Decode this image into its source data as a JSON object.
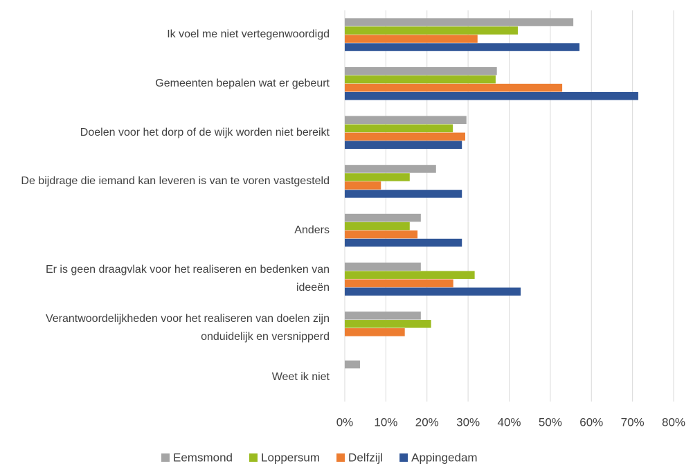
{
  "chart_data": {
    "type": "hbar",
    "categories": [
      "Ik voel me niet vertegenwoordigd",
      "Gemeenten bepalen wat er gebeurt",
      "Doelen voor het dorp of de wijk worden niet bereikt",
      "De bijdrage die iemand kan leveren is van te voren vastgesteld",
      "Anders",
      "Er is geen draagvlak voor het realiseren en bedenken van ideeën",
      "Verantwoordelijkheden voor het realiseren van doelen zijn onduidelijk en versnipperd",
      "Weet ik niet"
    ],
    "series": [
      {
        "name": "Eemsmond",
        "color": "#a5a5a5",
        "values": [
          55.6,
          37.0,
          29.6,
          22.2,
          18.5,
          18.5,
          18.5,
          3.7
        ]
      },
      {
        "name": "Loppersum",
        "color": "#9bbb20",
        "values": [
          42.1,
          36.7,
          26.3,
          15.8,
          15.8,
          31.6,
          21.0,
          0
        ]
      },
      {
        "name": "Delfzijl",
        "color": "#ed7d31",
        "values": [
          32.3,
          52.9,
          29.3,
          8.8,
          17.7,
          26.4,
          14.6,
          0
        ]
      },
      {
        "name": "Appingedam",
        "color": "#2f5597",
        "values": [
          57.1,
          71.4,
          28.5,
          28.5,
          28.5,
          42.8,
          0,
          0
        ]
      }
    ],
    "xlim": [
      0,
      80
    ],
    "xticks": [
      {
        "value": 0,
        "label": "0%"
      },
      {
        "value": 10,
        "label": "10%"
      },
      {
        "value": 20,
        "label": "20%"
      },
      {
        "value": 30,
        "label": "30%"
      },
      {
        "value": 40,
        "label": "40%"
      },
      {
        "value": 50,
        "label": "50%"
      },
      {
        "value": 60,
        "label": "60%"
      },
      {
        "value": 70,
        "label": "70%"
      },
      {
        "value": 80,
        "label": "80%"
      }
    ],
    "grid": true,
    "legend": "bottom"
  }
}
